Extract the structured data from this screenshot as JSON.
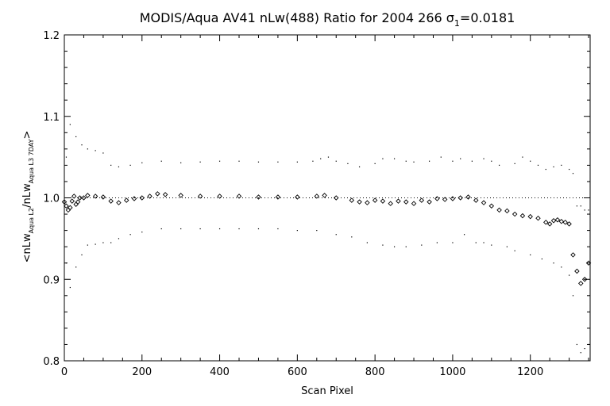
{
  "chart_data": {
    "type": "scatter",
    "title": "MODIS/Aqua AV41 nLw(488) Ratio for 2004 266 σ₁=0.0181",
    "title_parts": {
      "main": "MODIS/Aqua AV41 nLw(488) Ratio for 2004 266 σ",
      "sub": "1",
      "tail": "=0.0181"
    },
    "xlabel": "Scan Pixel",
    "ylabel": "<nLw Aqua L2 / nLw Aqua L3 7DAY>",
    "ylabel_parts": {
      "a": "<nLw",
      "a_sub": "Aqua L2",
      "b": "/nLw",
      "b_sub": "Aqua L3 7DAY",
      "c": ">"
    },
    "xlim": [
      0,
      1354
    ],
    "ylim": [
      0.8,
      1.2
    ],
    "xticks": [
      0,
      200,
      400,
      600,
      800,
      1000,
      1200
    ],
    "xtick_labels": [
      "0",
      "200",
      "400",
      "600",
      "800",
      "1000",
      "1200"
    ],
    "yticks": [
      0.8,
      0.9,
      1.0,
      1.1,
      1.2
    ],
    "ytick_labels": [
      "0.8",
      "0.9",
      "1.0",
      "1.1",
      "1.2"
    ],
    "reference_line": 1.0,
    "grid": false,
    "legend": "none",
    "color": "#000000",
    "series": [
      {
        "role": "mean",
        "marker": "diamond",
        "points": [
          [
            0,
            0.995
          ],
          [
            5,
            0.99
          ],
          [
            10,
            0.985
          ],
          [
            15,
            0.988
          ],
          [
            20,
            0.996
          ],
          [
            25,
            1.002
          ],
          [
            30,
            0.992
          ],
          [
            35,
            0.995
          ],
          [
            40,
            1.0
          ],
          [
            50,
            1.0
          ],
          [
            60,
            1.003
          ],
          [
            80,
            1.002
          ],
          [
            100,
            1.001
          ],
          [
            120,
            0.996
          ],
          [
            140,
            0.994
          ],
          [
            160,
            0.997
          ],
          [
            180,
            0.999
          ],
          [
            200,
            1.0
          ],
          [
            220,
            1.002
          ],
          [
            240,
            1.005
          ],
          [
            260,
            1.004
          ],
          [
            300,
            1.003
          ],
          [
            350,
            1.002
          ],
          [
            400,
            1.002
          ],
          [
            450,
            1.002
          ],
          [
            500,
            1.001
          ],
          [
            550,
            1.001
          ],
          [
            600,
            1.001
          ],
          [
            650,
            1.002
          ],
          [
            670,
            1.003
          ],
          [
            700,
            1.0
          ],
          [
            740,
            0.997
          ],
          [
            760,
            0.995
          ],
          [
            780,
            0.994
          ],
          [
            800,
            0.997
          ],
          [
            820,
            0.996
          ],
          [
            840,
            0.993
          ],
          [
            860,
            0.996
          ],
          [
            880,
            0.995
          ],
          [
            900,
            0.993
          ],
          [
            920,
            0.997
          ],
          [
            940,
            0.995
          ],
          [
            960,
            0.999
          ],
          [
            980,
            0.998
          ],
          [
            1000,
            0.999
          ],
          [
            1020,
            1.0
          ],
          [
            1040,
            1.001
          ],
          [
            1060,
            0.997
          ],
          [
            1080,
            0.994
          ],
          [
            1100,
            0.99
          ],
          [
            1120,
            0.985
          ],
          [
            1140,
            0.984
          ],
          [
            1160,
            0.98
          ],
          [
            1180,
            0.978
          ],
          [
            1200,
            0.977
          ],
          [
            1220,
            0.975
          ],
          [
            1240,
            0.97
          ],
          [
            1250,
            0.968
          ],
          [
            1260,
            0.972
          ],
          [
            1270,
            0.973
          ],
          [
            1280,
            0.971
          ],
          [
            1290,
            0.97
          ],
          [
            1300,
            0.968
          ],
          [
            1310,
            0.93
          ],
          [
            1320,
            0.91
          ],
          [
            1330,
            0.895
          ],
          [
            1340,
            0.9
          ],
          [
            1350,
            0.92
          ]
        ]
      },
      {
        "role": "upper_sigma",
        "marker": "dot",
        "points": [
          [
            5,
            1.05
          ],
          [
            15,
            1.09
          ],
          [
            30,
            1.075
          ],
          [
            45,
            1.065
          ],
          [
            60,
            1.06
          ],
          [
            80,
            1.058
          ],
          [
            100,
            1.055
          ],
          [
            120,
            1.04
          ],
          [
            140,
            1.038
          ],
          [
            170,
            1.04
          ],
          [
            200,
            1.043
          ],
          [
            250,
            1.045
          ],
          [
            300,
            1.043
          ],
          [
            350,
            1.044
          ],
          [
            400,
            1.045
          ],
          [
            450,
            1.045
          ],
          [
            500,
            1.044
          ],
          [
            550,
            1.044
          ],
          [
            600,
            1.044
          ],
          [
            640,
            1.045
          ],
          [
            660,
            1.048
          ],
          [
            680,
            1.05
          ],
          [
            700,
            1.045
          ],
          [
            730,
            1.042
          ],
          [
            760,
            1.038
          ],
          [
            800,
            1.042
          ],
          [
            820,
            1.048
          ],
          [
            850,
            1.048
          ],
          [
            880,
            1.045
          ],
          [
            900,
            1.044
          ],
          [
            940,
            1.045
          ],
          [
            970,
            1.05
          ],
          [
            1000,
            1.045
          ],
          [
            1020,
            1.048
          ],
          [
            1050,
            1.045
          ],
          [
            1080,
            1.048
          ],
          [
            1100,
            1.045
          ],
          [
            1120,
            1.04
          ],
          [
            1160,
            1.042
          ],
          [
            1180,
            1.05
          ],
          [
            1200,
            1.045
          ],
          [
            1220,
            1.04
          ],
          [
            1240,
            1.035
          ],
          [
            1260,
            1.038
          ],
          [
            1280,
            1.04
          ],
          [
            1300,
            1.035
          ],
          [
            1310,
            1.03
          ],
          [
            1320,
            0.99
          ],
          [
            1330,
            0.99
          ],
          [
            1340,
            0.985
          ],
          [
            1350,
            0.985
          ]
        ]
      },
      {
        "role": "lower_sigma",
        "marker": "dot",
        "points": [
          [
            5,
            0.92
          ],
          [
            15,
            0.89
          ],
          [
            30,
            0.915
          ],
          [
            45,
            0.93
          ],
          [
            60,
            0.942
          ],
          [
            80,
            0.943
          ],
          [
            100,
            0.945
          ],
          [
            120,
            0.945
          ],
          [
            140,
            0.95
          ],
          [
            170,
            0.955
          ],
          [
            200,
            0.958
          ],
          [
            250,
            0.962
          ],
          [
            300,
            0.962
          ],
          [
            350,
            0.962
          ],
          [
            400,
            0.962
          ],
          [
            450,
            0.962
          ],
          [
            500,
            0.962
          ],
          [
            550,
            0.962
          ],
          [
            600,
            0.96
          ],
          [
            650,
            0.96
          ],
          [
            700,
            0.955
          ],
          [
            740,
            0.952
          ],
          [
            780,
            0.945
          ],
          [
            820,
            0.942
          ],
          [
            850,
            0.94
          ],
          [
            880,
            0.94
          ],
          [
            920,
            0.942
          ],
          [
            960,
            0.945
          ],
          [
            1000,
            0.945
          ],
          [
            1030,
            0.955
          ],
          [
            1060,
            0.945
          ],
          [
            1080,
            0.945
          ],
          [
            1100,
            0.942
          ],
          [
            1140,
            0.94
          ],
          [
            1160,
            0.935
          ],
          [
            1200,
            0.93
          ],
          [
            1230,
            0.925
          ],
          [
            1260,
            0.92
          ],
          [
            1280,
            0.915
          ],
          [
            1300,
            0.905
          ],
          [
            1310,
            0.88
          ],
          [
            1320,
            0.82
          ],
          [
            1330,
            0.81
          ],
          [
            1340,
            0.815
          ],
          [
            1350,
            0.82
          ]
        ]
      }
    ]
  }
}
